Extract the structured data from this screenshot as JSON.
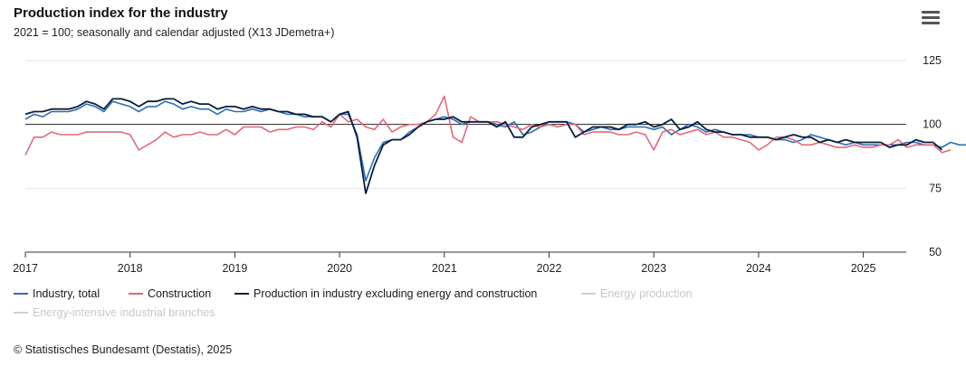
{
  "title": "Production index for the industry",
  "subtitle": "2021 = 100; seasonally and calendar adjusted (X13 JDemetra+)",
  "menu_icon": "hamburger-menu-icon",
  "credits": "© Statistisches Bundesamt (Destatis), 2025",
  "colors": {
    "industry_total": "#2f6db5",
    "construction": "#e06a7b",
    "excl_energy": "#0b1f3a",
    "hidden": "#d0d0d0",
    "reference_line": "#222222",
    "grid": "#e6e6e6"
  },
  "chart_data": {
    "type": "line",
    "title": "Production index for the industry",
    "subtitle": "2021 = 100; seasonally and calendar adjusted (X13 JDemetra+)",
    "x_start": "2017-01",
    "x_frequency": "monthly",
    "x_ticks": [
      "2017",
      "2018",
      "2019",
      "2020",
      "2021",
      "2022",
      "2023",
      "2024",
      "2025"
    ],
    "y_ticks": [
      50,
      75,
      100,
      125
    ],
    "ylim": [
      50,
      125
    ],
    "reference_line": 100,
    "grid": true,
    "legend_position": "bottom-left",
    "series": [
      {
        "name": "Industry, total",
        "visible": true,
        "values": [
          102,
          104,
          103,
          105,
          105,
          105,
          106,
          108,
          107,
          105,
          109,
          108,
          107,
          105,
          107,
          107,
          109,
          108,
          106,
          107,
          106,
          106,
          104,
          106,
          105,
          105,
          106,
          105,
          106,
          105,
          104,
          104,
          103,
          103,
          103,
          101,
          104,
          104,
          96,
          78,
          87,
          93,
          94,
          94,
          97,
          99,
          101,
          102,
          103,
          102,
          100,
          101,
          101,
          101,
          100,
          99,
          101,
          96,
          97,
          99,
          101,
          101,
          101,
          100,
          97,
          98,
          99,
          98,
          98,
          99,
          99,
          99,
          98,
          99,
          96,
          98,
          100,
          99,
          97,
          98,
          97,
          96,
          96,
          96,
          95,
          95,
          94,
          94,
          93,
          94,
          96,
          95,
          94,
          93,
          92,
          93,
          92,
          92,
          92,
          92,
          92,
          93,
          93,
          92,
          92,
          91,
          93,
          92,
          92,
          90
        ],
        "color": "#2f6db5"
      },
      {
        "name": "Construction",
        "visible": true,
        "values": [
          88,
          95,
          95,
          97,
          96,
          96,
          96,
          97,
          97,
          97,
          97,
          97,
          96,
          90,
          92,
          94,
          97,
          95,
          96,
          96,
          97,
          96,
          96,
          98,
          96,
          99,
          99,
          99,
          97,
          98,
          98,
          99,
          99,
          98,
          101,
          99,
          104,
          101,
          102,
          99,
          98,
          102,
          97,
          99,
          100,
          100,
          101,
          104,
          111,
          95,
          93,
          103,
          101,
          101,
          101,
          100,
          99,
          98,
          100,
          99,
          100,
          99,
          100,
          100,
          96,
          97,
          97,
          97,
          96,
          96,
          97,
          96,
          90,
          97,
          98,
          96,
          97,
          98,
          96,
          97,
          95,
          95,
          94,
          93,
          90,
          92,
          95,
          95,
          94,
          92,
          92,
          93,
          92,
          91,
          91,
          92,
          91,
          91,
          92,
          92,
          94,
          91,
          92,
          92,
          92,
          89,
          90
        ],
        "color": "#e06a7b"
      },
      {
        "name": "Production in industry excluding energy and construction",
        "visible": true,
        "values": [
          104,
          105,
          105,
          106,
          106,
          106,
          107,
          109,
          108,
          106,
          110,
          110,
          109,
          107,
          109,
          109,
          110,
          110,
          108,
          109,
          108,
          108,
          106,
          107,
          107,
          106,
          107,
          106,
          106,
          105,
          105,
          104,
          104,
          103,
          103,
          101,
          104,
          105,
          95,
          73,
          84,
          92,
          94,
          94,
          96,
          99,
          101,
          102,
          102,
          103,
          101,
          101,
          101,
          101,
          99,
          101,
          95,
          95,
          99,
          100,
          101,
          101,
          101,
          95,
          97,
          99,
          99,
          99,
          98,
          100,
          100,
          101,
          99,
          100,
          102,
          98,
          99,
          101,
          98,
          97,
          97,
          96,
          96,
          95,
          95,
          95,
          94,
          95,
          96,
          95,
          95,
          93,
          94,
          93,
          94,
          93,
          93,
          93,
          93,
          91,
          92,
          92,
          94,
          93,
          93,
          90
        ],
        "color": "#0b1f3a"
      },
      {
        "name": "Energy production",
        "visible": false,
        "values": [],
        "color": "#d0d0d0"
      },
      {
        "name": "Energy-intensive industrial branches",
        "visible": false,
        "values": [],
        "color": "#d0d0d0"
      }
    ]
  }
}
